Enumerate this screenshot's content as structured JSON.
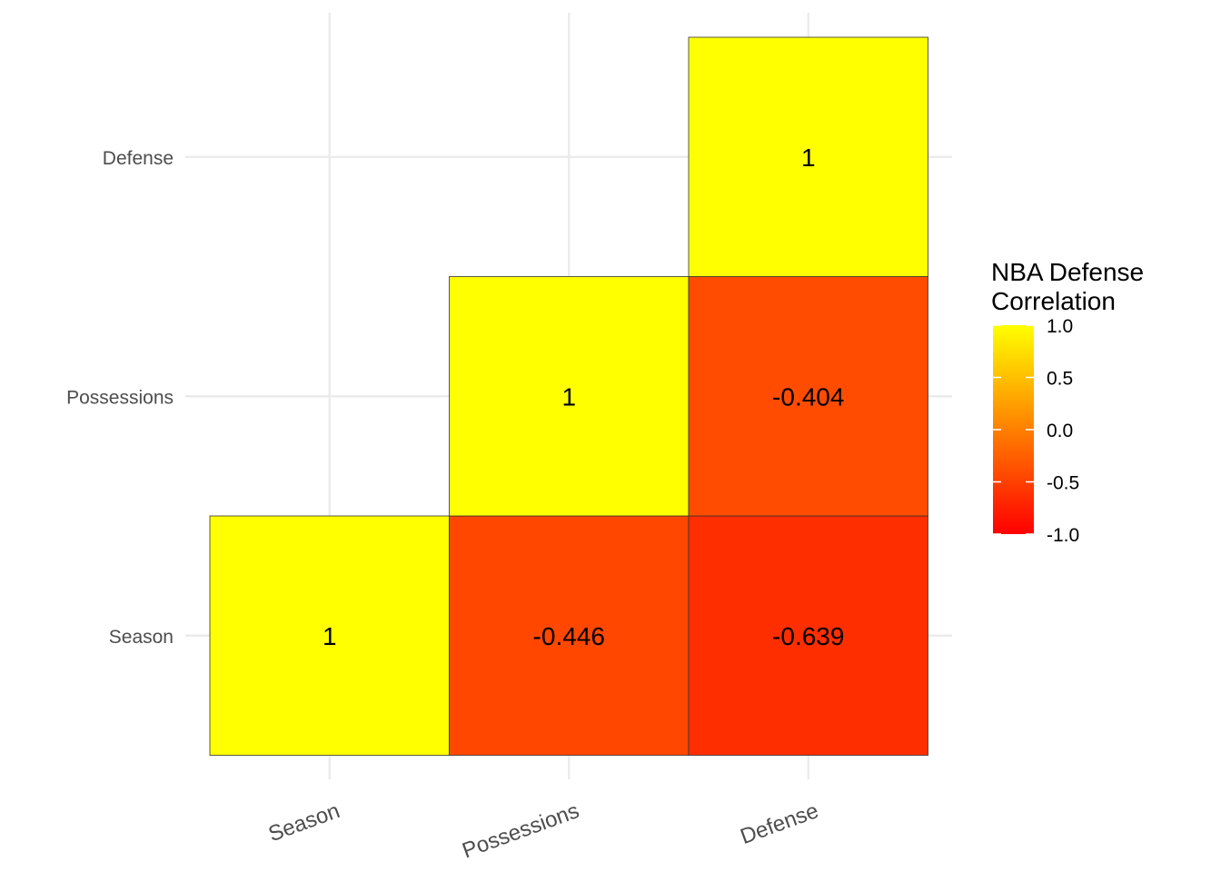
{
  "chart_data": {
    "type": "heatmap",
    "variables": [
      "Season",
      "Possessions",
      "Defense"
    ],
    "cells": [
      {
        "x": "Season",
        "y": "Season",
        "value": 1,
        "label": "1"
      },
      {
        "x": "Possessions",
        "y": "Season",
        "value": -0.446,
        "label": "-0.446"
      },
      {
        "x": "Defense",
        "y": "Season",
        "value": -0.639,
        "label": "-0.639"
      },
      {
        "x": "Possessions",
        "y": "Possessions",
        "value": 1,
        "label": "1"
      },
      {
        "x": "Defense",
        "y": "Possessions",
        "value": -0.404,
        "label": "-0.404"
      },
      {
        "x": "Defense",
        "y": "Defense",
        "value": 1,
        "label": "1"
      }
    ],
    "color_scale": {
      "low": "#FF0000",
      "high": "#FFFF00",
      "limits": [
        -1,
        1
      ]
    },
    "legend": {
      "title_lines": [
        "NBA Defense",
        "Correlation"
      ],
      "ticks": [
        1.0,
        0.5,
        0.0,
        -0.5,
        -1.0
      ],
      "tick_labels": [
        "1.0",
        "0.5",
        "0.0",
        "-0.5",
        "-1.0"
      ],
      "position": "right"
    },
    "grid": true
  }
}
